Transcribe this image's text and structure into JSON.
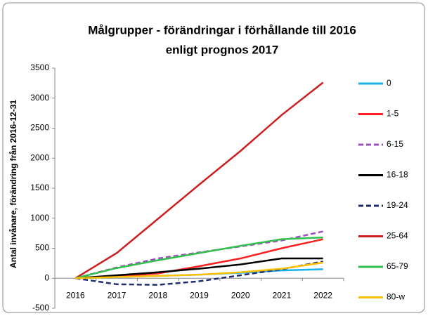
{
  "chart_data": {
    "type": "line",
    "title": [
      "Målgrupper - förändringar i förhållande till 2016",
      "enligt prognos 2017"
    ],
    "y_label": "Antal invånare, förändring från 2016-12-31",
    "categories": [
      "2016",
      "2017",
      "2018",
      "2019",
      "2020",
      "2021",
      "2022"
    ],
    "ylim": [
      -500,
      3500
    ],
    "yticks": [
      -500,
      0,
      500,
      1000,
      1500,
      2000,
      2500,
      3000,
      3500
    ],
    "grid": false,
    "legend": "right",
    "series": [
      {
        "name": "0",
        "color": "#1ab0ee",
        "dash": false,
        "values": [
          0,
          20,
          40,
          60,
          90,
          130,
          150
        ]
      },
      {
        "name": "1-5",
        "color": "#ff2020",
        "dash": false,
        "values": [
          0,
          30,
          80,
          200,
          330,
          500,
          650
        ]
      },
      {
        "name": "6-15",
        "color": "#a14fc0",
        "dash": true,
        "values": [
          0,
          180,
          330,
          430,
          530,
          630,
          780
        ]
      },
      {
        "name": "16-18",
        "color": "#000000",
        "dash": false,
        "values": [
          0,
          50,
          100,
          160,
          230,
          330,
          330
        ]
      },
      {
        "name": "19-24",
        "color": "#1f2d6e",
        "dash": true,
        "values": [
          0,
          -100,
          -110,
          -50,
          50,
          150,
          280
        ]
      },
      {
        "name": "25-64",
        "color": "#cc1f1f",
        "dash": false,
        "values": [
          0,
          420,
          990,
          1560,
          2120,
          2720,
          3260
        ]
      },
      {
        "name": "65-79",
        "color": "#2fbf4a",
        "dash": false,
        "values": [
          0,
          170,
          300,
          420,
          540,
          650,
          680
        ]
      },
      {
        "name": "80-w",
        "color": "#ffc000",
        "dash": false,
        "values": [
          0,
          20,
          40,
          60,
          100,
          160,
          260
        ]
      }
    ]
  }
}
